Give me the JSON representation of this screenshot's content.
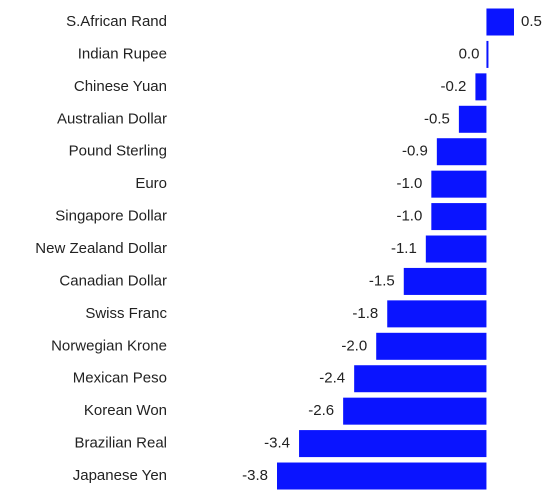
{
  "chart_data": {
    "type": "bar",
    "orientation": "horizontal",
    "categories": [
      "S.African Rand",
      "Indian Rupee",
      "Chinese Yuan",
      "Australian Dollar",
      "Pound Sterling",
      "Euro",
      "Singapore Dollar",
      "New Zealand Dollar",
      "Canadian Dollar",
      "Swiss Franc",
      "Norwegian Krone",
      "Mexican Peso",
      "Korean Won",
      "Brazilian Real",
      "Japanese Yen"
    ],
    "values": [
      0.5,
      0.0,
      -0.2,
      -0.5,
      -0.9,
      -1.0,
      -1.0,
      -1.1,
      -1.5,
      -1.8,
      -2.0,
      -2.4,
      -2.6,
      -3.4,
      -3.8
    ],
    "value_labels": [
      "0.5",
      "0.0",
      "-0.2",
      "-0.5",
      "-0.9",
      "-1.0",
      "-1.0",
      "-1.1",
      "-1.5",
      "-1.8",
      "-2.0",
      "-2.4",
      "-2.6",
      "-3.4",
      "-3.8"
    ],
    "color": "#0a14ff"
  }
}
